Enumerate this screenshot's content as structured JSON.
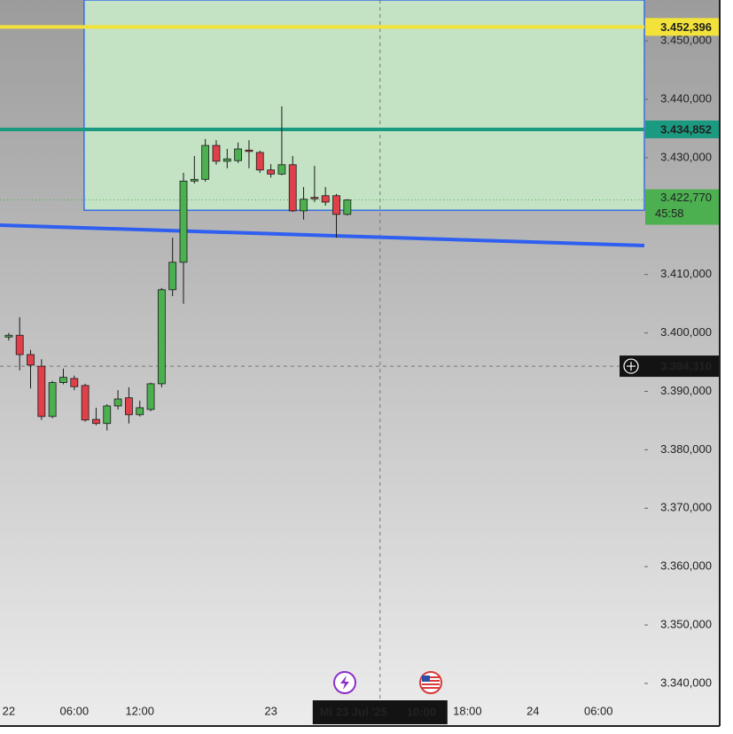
{
  "chart_data": {
    "type": "candlestick",
    "x": [
      0,
      1,
      2,
      3,
      4,
      5,
      6,
      7,
      8,
      9,
      10,
      11,
      12,
      13,
      14,
      15,
      16,
      17,
      18,
      19,
      20,
      21,
      22,
      23,
      24,
      25,
      26,
      27,
      28,
      29,
      30,
      31
    ],
    "open": [
      3399.3,
      3399.6,
      3396.3,
      3394.3,
      3385.7,
      3391.5,
      3392.2,
      3391.0,
      3385.2,
      3384.5,
      3387.5,
      3388.9,
      3386.0,
      3386.9,
      3391.3,
      3407.4,
      3412.1,
      3426.0,
      3426.3,
      3432.1,
      3429.4,
      3429.5,
      3431.3,
      3430.9,
      3427.9,
      3427.2,
      3428.8,
      3420.9,
      3423.2,
      3423.5,
      3423.5,
      3420.3
    ],
    "high": [
      3400.0,
      3402.7,
      3397.1,
      3395.5,
      3391.8,
      3393.9,
      3392.7,
      3391.3,
      3387.2,
      3387.8,
      3390.2,
      3390.7,
      3388.4,
      3391.5,
      3407.7,
      3416.3,
      3427.4,
      3430.3,
      3433.2,
      3433.0,
      3431.5,
      3432.6,
      3433.0,
      3431.2,
      3428.9,
      3438.8,
      3430.3,
      3425.0,
      3428.6,
      3425.0,
      3423.8,
      3422.9
    ],
    "low": [
      3398.7,
      3393.6,
      3390.5,
      3385.1,
      3385.4,
      3391.2,
      3390.2,
      3384.8,
      3384.2,
      3383.3,
      3386.9,
      3384.5,
      3385.7,
      3386.6,
      3390.7,
      3406.3,
      3405.0,
      3425.6,
      3425.9,
      3428.8,
      3428.2,
      3429.1,
      3428.2,
      3427.4,
      3426.6,
      3427.0,
      3420.7,
      3419.4,
      3422.4,
      3421.8,
      3416.3,
      3420.1
    ],
    "close": [
      3399.6,
      3396.3,
      3394.5,
      3385.7,
      3391.5,
      3392.4,
      3390.8,
      3385.1,
      3384.5,
      3387.5,
      3388.7,
      3386.0,
      3387.2,
      3391.3,
      3407.4,
      3412.1,
      3426.0,
      3426.3,
      3432.1,
      3429.4,
      3429.8,
      3431.5,
      3431.2,
      3427.9,
      3427.2,
      3428.8,
      3420.9,
      3422.9,
      3423.0,
      3422.4,
      3420.3,
      3422.77
    ],
    "up_color": "#4caf50",
    "down_color": "#e0404a",
    "xlim": [
      -0.8,
      58.2
    ],
    "ylim": [
      3332.1,
      3457.0
    ],
    "xticks": [
      {
        "value": 0,
        "label": "22"
      },
      {
        "value": 6,
        "label": "06:00"
      },
      {
        "value": 12,
        "label": "12:00"
      },
      {
        "value": 24,
        "label": "23"
      },
      {
        "value": 42,
        "label": "18:00"
      },
      {
        "value": 48,
        "label": "24"
      },
      {
        "value": 54,
        "label": "06:00"
      }
    ],
    "yticks": [
      {
        "value": 3450,
        "label": "3.450,000"
      },
      {
        "value": 3440,
        "label": "3.440,000"
      },
      {
        "value": 3430,
        "label": "3.430,000"
      },
      {
        "value": 3410,
        "label": "3.410,000"
      },
      {
        "value": 3400,
        "label": "3.400,000"
      },
      {
        "value": 3390,
        "label": "3.390,000"
      },
      {
        "value": 3380,
        "label": "3.380,000"
      },
      {
        "value": 3370,
        "label": "3.370,000"
      },
      {
        "value": 3360,
        "label": "3.360,000"
      },
      {
        "value": 3350,
        "label": "3.350,000"
      },
      {
        "value": 3340,
        "label": "3.340,000"
      }
    ],
    "zone": {
      "x": 6.9,
      "y": 3421.0,
      "color": "#c4e2c4",
      "border": "#3a6fe3"
    },
    "levels": [
      {
        "value": 3452.396,
        "label": "3.452,396",
        "color": "#f2e23a"
      },
      {
        "value": 3434.852,
        "label": "3.434,852",
        "color": "#1a9a80"
      }
    ],
    "trendline": {
      "x": [
        -0.8,
        58.2
      ],
      "y": [
        3418.45,
        3414.96
      ],
      "color": "#2f5ff0"
    },
    "last_price": {
      "value": 3422.77,
      "label": "3.422,770",
      "countdown": "45:58",
      "color": "#4caf50"
    },
    "crosshair": {
      "x": 34,
      "y": {
        "value": 3394.31,
        "label": "3.394,310"
      },
      "date_label": "Mi 23 Jul '25",
      "time_label": "10:00"
    }
  }
}
